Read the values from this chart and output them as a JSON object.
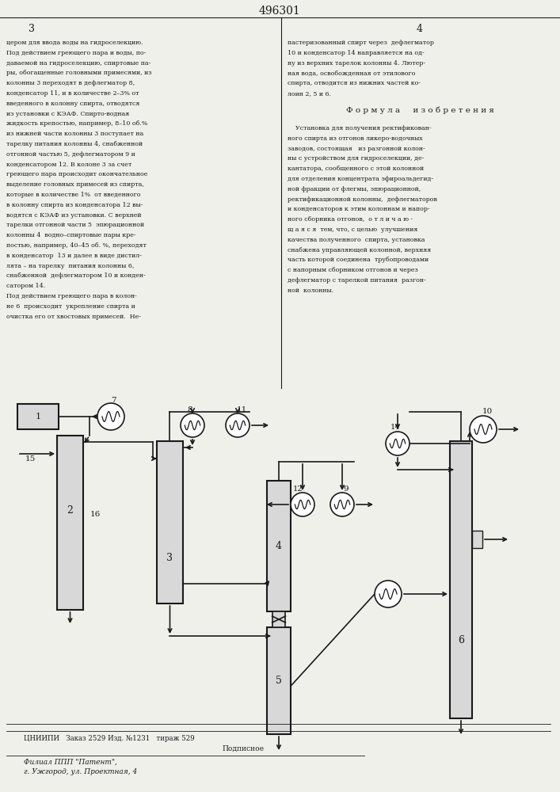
{
  "title": "496301",
  "formula_title": "Ф о р м у л а     и з о б р е т е н и я",
  "left_text": [
    "цером для ввода воды на гидроселекцию.",
    "Под действием греющего пара и воды, по-",
    "даваемой на гидроселекцию, спиртовые па-",
    "ры, обогащенные головными примесями, из",
    "колонны 3 переходят в дефлегматор 8,",
    "конденсатор 11, и в количестве 2–3% от",
    "введенного в колонну спирта, отводятся",
    "из установки с КЭАФ. Спирто-водная",
    "жидкость крепостью, например, 8–10 об.%",
    "из нижней части колонны 3 поступает на",
    "тарелку питания колонны 4, снабженной",
    "отгонной частью 5, дефлегматором 9 и",
    "конденсатором 12. В колоне 3 за счет",
    "греющего пара происходит окончательное",
    "выделение головных примесей из спирта,",
    "которые в количестве 1%  от введенного",
    "в колонну спирта из конденсатора 12 вы-",
    "водятся с КЭАФ из установки. С верхней",
    "тарелки отгонной части 5  эпюрационной",
    "колонны 4  водно–спиртовые пары кре-",
    "постью, например, 40–45 об. %, переходят",
    "в конденсатор  13 и далее в виде дистил-",
    "лята – на тарелку  питания колонны 6,",
    "снабженной  дефлегматором 10 и конден-",
    "сатором 14."
  ],
  "left_text2": [
    "Под действием греющего пара в колон-",
    "не 6  происходит  укрепление спирта и",
    "очистка его от хвостовых примесей.  Не-"
  ],
  "right_text": [
    "пастеризованный спирт через  дефлегматор",
    "10 и конденсатор 14 направляется на од-",
    "ну из верхних тарелок колонны 4. Лютер-",
    "ная вода, освобожденная от этилового",
    "спирта, отводится из нижних частей ко-",
    "лоин 2, 5 и 6."
  ],
  "right_formula_text": [
    "    Установка для получения ректификован-",
    "ного спирта из отгонов ликеро-водочных",
    "заводов, состоящая   из разгонной колон-",
    "ны с устройством для гидроселекции, де-",
    "кантатора, сообщенного с этой колонной",
    "для отделения концентрата эфироальдегид-",
    "ной фракции от флегмы, эпюрационной,",
    "ректификационной колонны,  дефлегматоров",
    "и конденсаторов к этим колоннам и напор-",
    "ного сборника отгонов,  о т л и ч а ю -",
    "щ а я с я  тем, что, с целью  улучшения",
    "качества полученного  спирта, установка",
    "снабжена управляющей колонной, верхняя",
    "часть которой соединена  трубопроводами",
    "с напорным сборником отгонов и через",
    "дефлегматор с тарелкой питания  разгон-",
    "ной  колонны."
  ],
  "footer_text": [
    "ЦНИИПИ   Заказ 2529 Изд. №1231   тираж 529",
    "Подписное",
    "Филиал ППП \"Патент\",",
    "г. Ужгород, ул. Проектная, 4"
  ],
  "bg_color": "#f0f0eb",
  "line_color": "#1a1a1a",
  "text_color": "#1a1a1a"
}
